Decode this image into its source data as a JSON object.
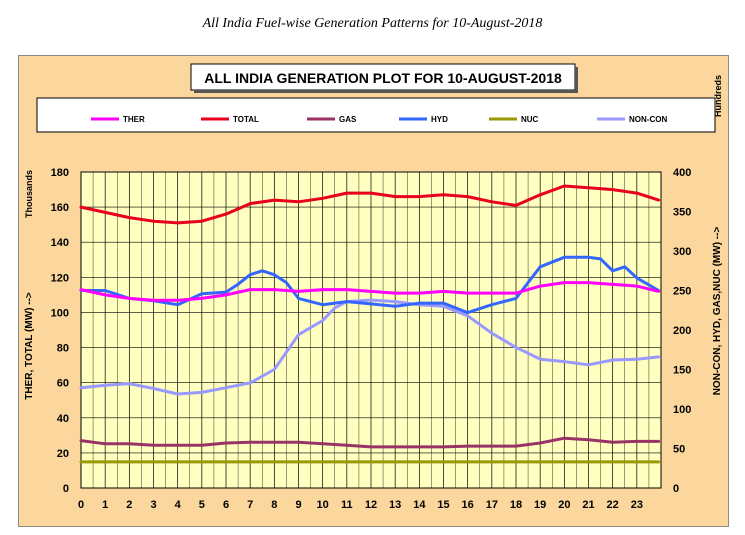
{
  "page": {
    "caption": "All India Fuel-wise Generation Patterns for 10-August-2018"
  },
  "chart_data": {
    "type": "line",
    "title": "ALL INDIA GENERATION PLOT FOR 10-AUGUST-2018",
    "ylabel_left": "THER, TOTAL (MW) -->",
    "ylabel_right": "NON-CON, HYD, GAS,NUC (MW) -->",
    "left_unit_label": "Thousands",
    "right_unit_label": "Hundreds",
    "ylim_left": [
      0,
      180
    ],
    "ylim_right": [
      0,
      400
    ],
    "yticks_left": [
      "0",
      "20",
      "40",
      "60",
      "80",
      "100",
      "120",
      "140",
      "160",
      "180"
    ],
    "yticks_right": [
      "0",
      "50",
      "100",
      "150",
      "200",
      "250",
      "300",
      "350",
      "400"
    ],
    "x_ticks": [
      "0",
      "1",
      "2",
      "3",
      "4",
      "5",
      "6",
      "7",
      "8",
      "9",
      "10",
      "11",
      "12",
      "13",
      "14",
      "15",
      "16",
      "17",
      "18",
      "19",
      "20",
      "21",
      "22",
      "23"
    ],
    "xlim": [
      0,
      24
    ],
    "grid": true,
    "legend_position": "top",
    "series": [
      {
        "name": "THER",
        "axis": "left",
        "color": "#ff00ff",
        "points": [
          [
            0,
            113
          ],
          [
            1,
            110
          ],
          [
            2,
            108
          ],
          [
            3,
            107
          ],
          [
            4,
            107
          ],
          [
            5,
            108
          ],
          [
            6,
            110
          ],
          [
            7,
            113
          ],
          [
            8,
            113
          ],
          [
            9,
            112
          ],
          [
            10,
            113
          ],
          [
            11,
            113
          ],
          [
            12,
            112
          ],
          [
            13,
            111
          ],
          [
            14,
            111
          ],
          [
            15,
            112
          ],
          [
            16,
            111
          ],
          [
            17,
            111
          ],
          [
            18,
            111
          ],
          [
            19,
            115
          ],
          [
            20,
            117
          ],
          [
            21,
            117
          ],
          [
            22,
            116
          ],
          [
            23,
            115
          ],
          [
            23.9,
            112
          ]
        ]
      },
      {
        "name": "TOTAL",
        "axis": "left",
        "color": "#e8001c",
        "points": [
          [
            0,
            160
          ],
          [
            1,
            157
          ],
          [
            2,
            154
          ],
          [
            3,
            152
          ],
          [
            4,
            151
          ],
          [
            5,
            152
          ],
          [
            6,
            156
          ],
          [
            7,
            162
          ],
          [
            8,
            164
          ],
          [
            9,
            163
          ],
          [
            10,
            165
          ],
          [
            11,
            168
          ],
          [
            12,
            168
          ],
          [
            13,
            166
          ],
          [
            14,
            166
          ],
          [
            15,
            167
          ],
          [
            16,
            166
          ],
          [
            17,
            163
          ],
          [
            18,
            161
          ],
          [
            19,
            167
          ],
          [
            20,
            172
          ],
          [
            21,
            171
          ],
          [
            22,
            170
          ],
          [
            23,
            168
          ],
          [
            23.9,
            164
          ]
        ]
      },
      {
        "name": "GAS",
        "axis": "right",
        "color": "#993366",
        "points": [
          [
            0,
            60
          ],
          [
            1,
            56
          ],
          [
            2,
            56
          ],
          [
            3,
            54
          ],
          [
            4,
            54
          ],
          [
            5,
            54
          ],
          [
            6,
            57
          ],
          [
            7,
            58
          ],
          [
            8,
            58
          ],
          [
            9,
            58
          ],
          [
            10,
            56
          ],
          [
            11,
            54
          ],
          [
            12,
            52
          ],
          [
            13,
            52
          ],
          [
            14,
            52
          ],
          [
            15,
            52
          ],
          [
            16,
            53
          ],
          [
            17,
            53
          ],
          [
            18,
            53
          ],
          [
            19,
            57
          ],
          [
            20,
            63
          ],
          [
            21,
            61
          ],
          [
            22,
            58
          ],
          [
            23,
            59
          ],
          [
            23.9,
            59
          ]
        ]
      },
      {
        "name": "HYD",
        "axis": "right",
        "color": "#3366ff",
        "points": [
          [
            0,
            250
          ],
          [
            1,
            250
          ],
          [
            2,
            240
          ],
          [
            3,
            237
          ],
          [
            4,
            232
          ],
          [
            5,
            246
          ],
          [
            6,
            248
          ],
          [
            6.5,
            258
          ],
          [
            7,
            270
          ],
          [
            7.5,
            275
          ],
          [
            8,
            270
          ],
          [
            8.5,
            260
          ],
          [
            9,
            240
          ],
          [
            10,
            232
          ],
          [
            11,
            236
          ],
          [
            12,
            233
          ],
          [
            13,
            230
          ],
          [
            14,
            234
          ],
          [
            15,
            234
          ],
          [
            16,
            222
          ],
          [
            17,
            232
          ],
          [
            18,
            240
          ],
          [
            19,
            280
          ],
          [
            20,
            292
          ],
          [
            21,
            292
          ],
          [
            21.5,
            290
          ],
          [
            22,
            275
          ],
          [
            22.5,
            280
          ],
          [
            23,
            266
          ],
          [
            23.9,
            250
          ]
        ]
      },
      {
        "name": "NUC",
        "axis": "right",
        "color": "#999900",
        "points": [
          [
            0,
            33
          ],
          [
            23.9,
            33
          ]
        ]
      },
      {
        "name": "NON-CON",
        "axis": "right",
        "color": "#9999ff",
        "points": [
          [
            0,
            127
          ],
          [
            1,
            130
          ],
          [
            2,
            132
          ],
          [
            3,
            126
          ],
          [
            4,
            119
          ],
          [
            5,
            121
          ],
          [
            6,
            127
          ],
          [
            7,
            133
          ],
          [
            8,
            150
          ],
          [
            9,
            194
          ],
          [
            10,
            212
          ],
          [
            10.5,
            228
          ],
          [
            11,
            236
          ],
          [
            12,
            238
          ],
          [
            13,
            236
          ],
          [
            14,
            232
          ],
          [
            15,
            230
          ],
          [
            16,
            218
          ],
          [
            17,
            196
          ],
          [
            18,
            178
          ],
          [
            19,
            163
          ],
          [
            20,
            160
          ],
          [
            21,
            156
          ],
          [
            22,
            162
          ],
          [
            23,
            163
          ],
          [
            23.9,
            166
          ]
        ]
      }
    ]
  }
}
